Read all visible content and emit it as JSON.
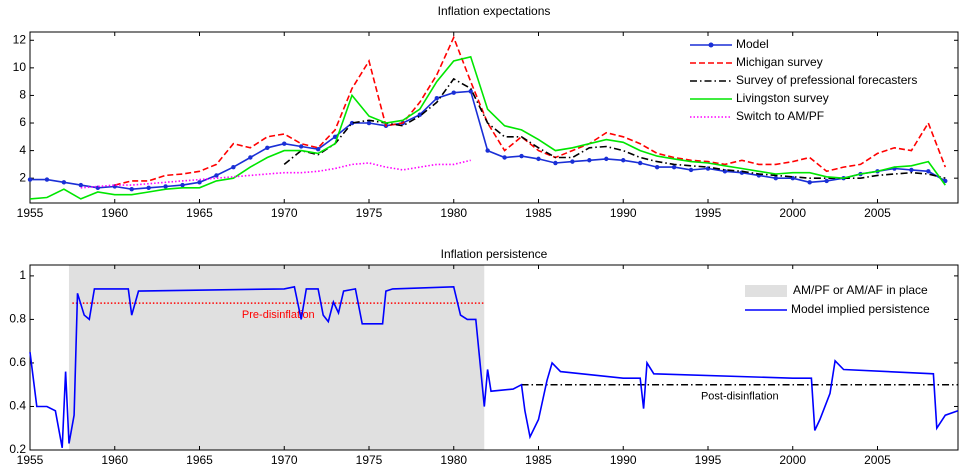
{
  "chart_data": [
    {
      "type": "line",
      "title": "Inflation expectations",
      "x": [
        1955,
        1956,
        1957,
        1958,
        1959,
        1960,
        1961,
        1962,
        1963,
        1964,
        1965,
        1966,
        1967,
        1968,
        1969,
        1970,
        1971,
        1972,
        1973,
        1974,
        1975,
        1976,
        1977,
        1978,
        1979,
        1980,
        1981,
        1982,
        1983,
        1984,
        1985,
        1986,
        1987,
        1988,
        1989,
        1990,
        1991,
        1992,
        1993,
        1994,
        1995,
        1996,
        1997,
        1998,
        1999,
        2000,
        2001,
        2002,
        2003,
        2004,
        2005,
        2006,
        2007,
        2008,
        2009
      ],
      "series": [
        {
          "name": "Model",
          "color": "#1a2fd6",
          "style": "solid",
          "marker": "circle",
          "values": [
            1.9,
            1.9,
            1.7,
            1.5,
            1.3,
            1.4,
            1.2,
            1.3,
            1.4,
            1.5,
            1.7,
            2.2,
            2.8,
            3.5,
            4.2,
            4.5,
            4.3,
            4.1,
            5.0,
            6.0,
            6.0,
            5.8,
            6.0,
            6.6,
            7.8,
            8.2,
            8.3,
            4.0,
            3.5,
            3.6,
            3.4,
            3.1,
            3.2,
            3.3,
            3.4,
            3.3,
            3.1,
            2.8,
            2.8,
            2.6,
            2.7,
            2.5,
            2.4,
            2.2,
            2.0,
            2.0,
            1.7,
            1.8,
            2.0,
            2.3,
            2.5,
            2.7,
            2.6,
            2.5,
            1.8
          ]
        },
        {
          "name": "Michigan survey",
          "color": "#ff0000",
          "style": "dashed",
          "values": [
            null,
            null,
            null,
            null,
            null,
            1.5,
            1.8,
            1.8,
            2.2,
            2.3,
            2.5,
            3.0,
            4.5,
            4.2,
            5.0,
            5.2,
            4.5,
            4.2,
            5.5,
            8.5,
            10.5,
            5.8,
            6.0,
            7.5,
            9.5,
            12.2,
            9.0,
            6.0,
            4.0,
            5.0,
            4.0,
            3.5,
            4.0,
            4.5,
            5.3,
            5.0,
            4.5,
            3.8,
            3.5,
            3.3,
            3.2,
            3.0,
            3.3,
            3.0,
            3.0,
            3.2,
            3.5,
            2.5,
            2.8,
            3.0,
            3.8,
            4.2,
            4.0,
            6.0,
            2.8
          ]
        },
        {
          "name": "Survey of prefessional forecasters",
          "color": "#000000",
          "style": "dashdot",
          "values": [
            null,
            null,
            null,
            null,
            null,
            null,
            null,
            null,
            null,
            null,
            null,
            null,
            null,
            null,
            null,
            3.0,
            4.0,
            3.7,
            4.5,
            6.0,
            6.2,
            6.0,
            5.8,
            6.5,
            7.5,
            9.2,
            8.5,
            6.0,
            5.0,
            5.0,
            4.2,
            3.5,
            3.5,
            4.2,
            4.3,
            4.0,
            3.5,
            3.2,
            3.0,
            2.9,
            2.8,
            2.6,
            2.5,
            2.3,
            2.2,
            2.1,
            2.0,
            2.0,
            2.0,
            2.0,
            2.2,
            2.3,
            2.4,
            2.3,
            2.0
          ]
        },
        {
          "name": "Livingston survey",
          "color": "#00e600",
          "style": "solid",
          "values": [
            0.5,
            0.6,
            1.2,
            0.5,
            1.0,
            0.8,
            0.8,
            1.0,
            1.2,
            1.3,
            1.3,
            1.8,
            2.0,
            2.8,
            3.5,
            4.0,
            4.0,
            3.8,
            4.5,
            8.0,
            6.5,
            6.0,
            6.2,
            7.0,
            9.0,
            10.5,
            10.8,
            7.0,
            5.8,
            5.5,
            4.8,
            4.0,
            4.2,
            4.5,
            4.8,
            4.6,
            4.0,
            3.6,
            3.4,
            3.2,
            3.1,
            2.9,
            2.7,
            2.5,
            2.3,
            2.4,
            2.4,
            2.1,
            2.0,
            2.3,
            2.5,
            2.8,
            2.9,
            3.2,
            1.5
          ]
        },
        {
          "name": "Switch to AM/PF",
          "color": "#ff00ff",
          "style": "dotted",
          "values": [
            null,
            null,
            null,
            1.3,
            1.4,
            1.5,
            1.5,
            1.6,
            1.7,
            1.8,
            1.9,
            2.0,
            2.1,
            2.2,
            2.3,
            2.4,
            2.4,
            2.5,
            2.7,
            3.0,
            3.1,
            2.8,
            2.6,
            2.8,
            3.0,
            3.0,
            3.3,
            null,
            null,
            null,
            null,
            null,
            null,
            null,
            null,
            null,
            null,
            null,
            null,
            null,
            null,
            null,
            null,
            null,
            null,
            null,
            null,
            null,
            null,
            null,
            null,
            null,
            null,
            null,
            null
          ]
        }
      ],
      "xlim": [
        1955,
        2009.75
      ],
      "xticks": [
        1955,
        1960,
        1965,
        1970,
        1975,
        1980,
        1985,
        1990,
        1995,
        2000,
        2005
      ],
      "ylim": [
        0.2,
        12.6
      ],
      "yticks": [
        2,
        4,
        6,
        8,
        10,
        12
      ],
      "legend": "upper right"
    },
    {
      "type": "line",
      "title": "Inflation persistence",
      "x": [
        1955,
        1955.4,
        1956,
        1956.5,
        1956.9,
        1957.1,
        1957.3,
        1957.6,
        1957.8,
        1958.2,
        1958.5,
        1958.8,
        1960.8,
        1961,
        1961.4,
        1970,
        1970.6,
        1971,
        1971.3,
        1972,
        1972.3,
        1972.6,
        1972.9,
        1973.2,
        1973.5,
        1974.2,
        1974.6,
        1975.8,
        1976,
        1976.4,
        1980,
        1980.4,
        1980.8,
        1981.3,
        1981.8,
        1982,
        1982.2,
        1983.5,
        1984,
        1984.2,
        1984.5,
        1985,
        1985.5,
        1985.8,
        1986.3,
        1990,
        1991,
        1991.2,
        1991.4,
        1991.8,
        2000,
        2001.1,
        2001.3,
        2001.6,
        2002.2,
        2002.5,
        2003,
        2008.3,
        2008.5,
        2009,
        2009.75
      ],
      "series": [
        {
          "name": "Model implied persistence",
          "color": "#0000ff",
          "style": "solid",
          "values": [
            0.65,
            0.4,
            0.4,
            0.38,
            0.21,
            0.56,
            0.23,
            0.36,
            0.92,
            0.82,
            0.8,
            0.94,
            0.94,
            0.82,
            0.93,
            0.94,
            0.95,
            0.8,
            0.94,
            0.94,
            0.82,
            0.79,
            0.88,
            0.83,
            0.93,
            0.94,
            0.78,
            0.78,
            0.93,
            0.94,
            0.95,
            0.82,
            0.8,
            0.8,
            0.4,
            0.57,
            0.47,
            0.48,
            0.5,
            0.38,
            0.26,
            0.34,
            0.52,
            0.6,
            0.56,
            0.53,
            0.53,
            0.39,
            0.6,
            0.55,
            0.53,
            0.53,
            0.29,
            0.34,
            0.46,
            0.61,
            0.57,
            0.55,
            0.3,
            0.36,
            0.38
          ]
        }
      ],
      "spans": [
        {
          "name": "AM/PF or AM/AF in place",
          "start": 1957.3,
          "end": 1981.8,
          "color": "#e0e0e0"
        }
      ],
      "reference_lines": [
        {
          "label": "Pre-disinflation",
          "value": 0.875,
          "start": 1957.5,
          "end": 1981.8,
          "color": "#ff0000",
          "style": "dotted"
        },
        {
          "label": "Post-disinflation",
          "value": 0.5,
          "start": 1984,
          "end": 2009.75,
          "color": "#000000",
          "style": "dashdot"
        }
      ],
      "xlim": [
        1955,
        2009.75
      ],
      "xticks": [
        1955,
        1960,
        1965,
        1970,
        1975,
        1980,
        1985,
        1990,
        1995,
        2000,
        2005
      ],
      "ylim": [
        0.2,
        1.05
      ],
      "yticks": [
        0.2,
        0.4,
        0.6,
        0.8,
        1
      ],
      "legend": "upper right"
    }
  ]
}
